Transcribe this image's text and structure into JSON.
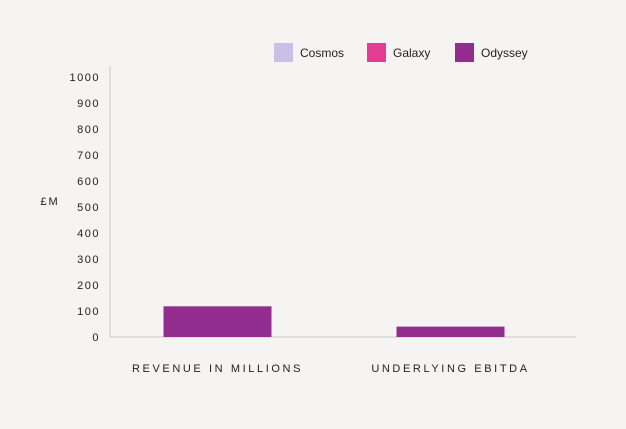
{
  "chart_data": {
    "type": "bar",
    "title": "",
    "xlabel": "",
    "ylabel": "£M",
    "ylim": [
      0,
      1000
    ],
    "yticks": [
      0,
      100,
      200,
      300,
      400,
      500,
      600,
      700,
      800,
      900,
      1000
    ],
    "categories": [
      "REVENUE IN MILLIONS",
      "UNDERLYING EBITDA"
    ],
    "series": [
      {
        "name": "Cosmos",
        "color": "#c9c0e8",
        "values": [
          0,
          0
        ]
      },
      {
        "name": "Galaxy",
        "color": "#e23d93",
        "values": [
          0,
          0
        ]
      },
      {
        "name": "Odyssey",
        "color": "#922d8f",
        "values": [
          118,
          40
        ]
      }
    ],
    "legend_position": "top-right",
    "grid": false
  }
}
